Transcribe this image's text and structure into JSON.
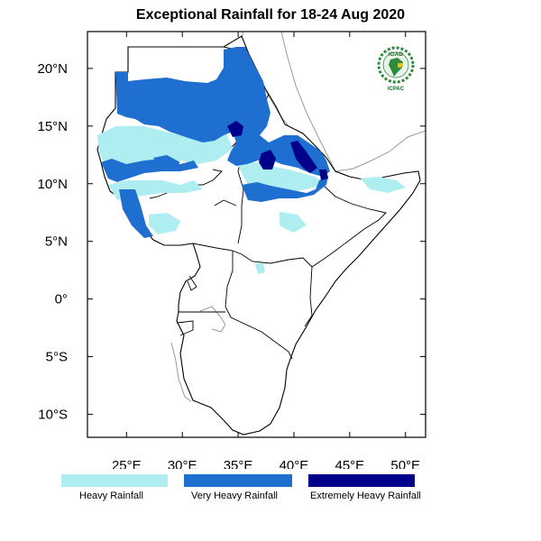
{
  "title": "Exceptional Rainfall for 18-24 Aug 2020",
  "map": {
    "lon_range": [
      21.5,
      51.8
    ],
    "lat_range": [
      -12,
      23.2
    ],
    "x_ticks": [
      {
        "lon": 25,
        "label": "25°E"
      },
      {
        "lon": 30,
        "label": "30°E"
      },
      {
        "lon": 35,
        "label": "35°E"
      },
      {
        "lon": 40,
        "label": "40°E"
      },
      {
        "lon": 45,
        "label": "45°E"
      },
      {
        "lon": 50,
        "label": "50°E"
      }
    ],
    "y_ticks": [
      {
        "lat": 20,
        "label": "20°N"
      },
      {
        "lat": 15,
        "label": "15°N"
      },
      {
        "lat": 10,
        "label": "10°N"
      },
      {
        "lat": 5,
        "label": "5°N"
      },
      {
        "lat": 0,
        "label": "0°"
      },
      {
        "lat": -5,
        "label": "5°S"
      },
      {
        "lat": -10,
        "label": "10°S"
      }
    ]
  },
  "logo": {
    "top_text": "IGAD",
    "bottom_text": "ICPAC"
  },
  "legend": [
    {
      "label": "Heavy Rainfall",
      "color": "#aeeef0"
    },
    {
      "label": "Very Heavy Rainfall",
      "color": "#1e6fd0"
    },
    {
      "label": "Extremely Heavy Rainfall",
      "color": "#00008b"
    }
  ],
  "colors": {
    "heavy": "#aeeef0",
    "very_heavy": "#1e6fd0",
    "extreme": "#00008b",
    "boundary": "#000000",
    "outside_coast": "#9a9a9a"
  }
}
